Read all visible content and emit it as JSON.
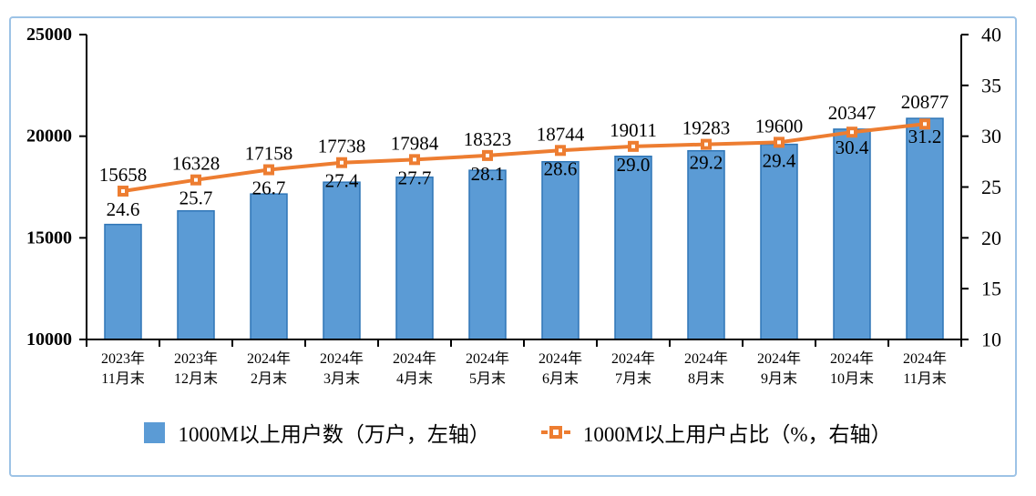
{
  "frame": {
    "border_color": "#9DC3E6",
    "background": "#FFFFFF"
  },
  "chart_data": {
    "type": "bar",
    "subtype": "bar-line-combo-dual-axis",
    "title": "",
    "categories": [
      [
        "2023年",
        "11月末"
      ],
      [
        "2023年",
        "12月末"
      ],
      [
        "2024年",
        "2月末"
      ],
      [
        "2024年",
        "3月末"
      ],
      [
        "2024年",
        "4月末"
      ],
      [
        "2024年",
        "5月末"
      ],
      [
        "2024年",
        "6月末"
      ],
      [
        "2024年",
        "7月末"
      ],
      [
        "2024年",
        "8月末"
      ],
      [
        "2024年",
        "9月末"
      ],
      [
        "2024年",
        "10月末"
      ],
      [
        "2024年",
        "11月末"
      ]
    ],
    "series": [
      {
        "name": "1000M以上用户数（万户，左轴）",
        "type": "bar",
        "axis": "left",
        "color": "#5B9BD5",
        "border_color": "#2E75B6",
        "values": [
          15658,
          16328,
          17158,
          17738,
          17984,
          18323,
          18744,
          19011,
          19283,
          19600,
          20347,
          20877
        ]
      },
      {
        "name": "1000M以上用户占比（%，右轴）",
        "type": "line",
        "axis": "right",
        "color": "#ED7D31",
        "marker": "square-hollow",
        "values": [
          24.6,
          25.7,
          26.7,
          27.4,
          27.7,
          28.1,
          28.6,
          29.0,
          29.2,
          29.4,
          30.4,
          31.2
        ]
      }
    ],
    "left_axis": {
      "min": 10000,
      "max": 25000,
      "ticks": [
        10000,
        15000,
        20000,
        25000
      ]
    },
    "right_axis": {
      "min": 10,
      "max": 40,
      "ticks": [
        10,
        15,
        20,
        25,
        30,
        35,
        40
      ]
    },
    "grid": false,
    "legend_position": "bottom",
    "axis_color": "#000000",
    "label_color": "#000000"
  }
}
